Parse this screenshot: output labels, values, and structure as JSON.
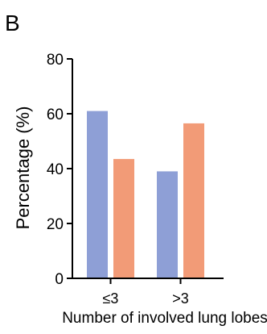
{
  "panel_label": "B",
  "chart_data": {
    "type": "bar",
    "categories": [
      "≤3",
      ">3"
    ],
    "series": [
      {
        "values": [
          61,
          39
        ],
        "color": "#8E9FD6"
      },
      {
        "values": [
          43.5,
          56.5
        ],
        "color": "#F29B77"
      }
    ],
    "title": "",
    "xlabel": "Number of involved lung lobes",
    "ylabel": "Percentage (%)",
    "ylim": [
      0,
      80
    ],
    "yticks": [
      0,
      20,
      40,
      60,
      80
    ],
    "grid": false,
    "legend": "none"
  }
}
